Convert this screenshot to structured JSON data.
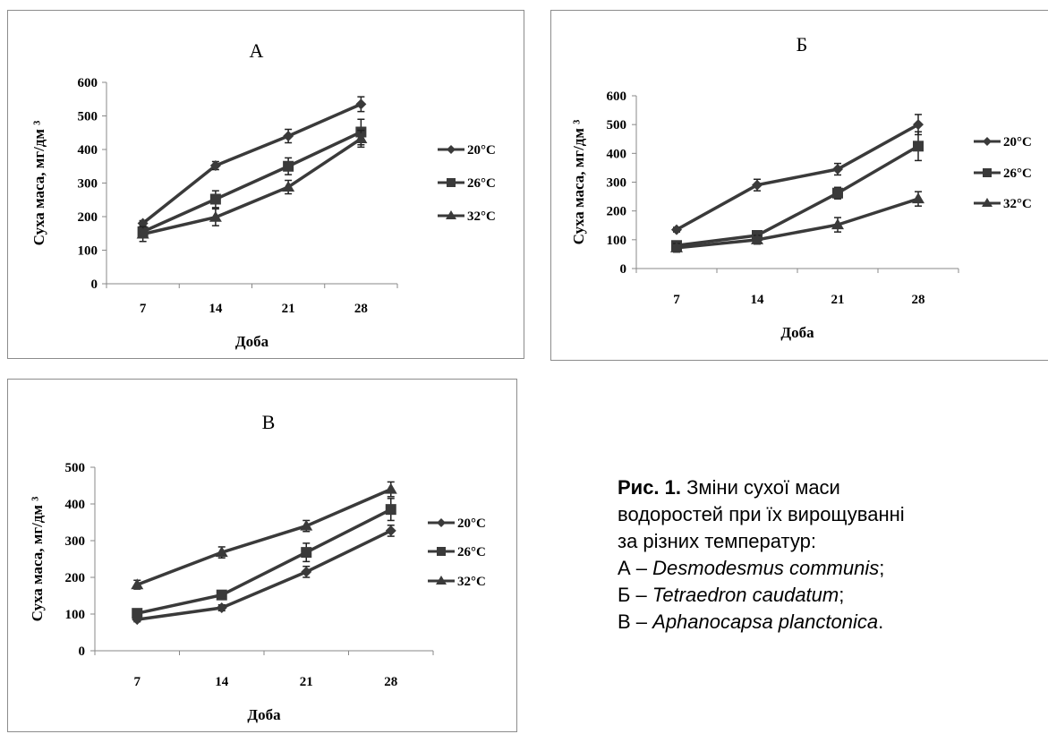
{
  "chart_data": [
    {
      "type": "line",
      "title": "А",
      "xlabel": "Доба",
      "ylabel": "Суха маса, мг/дм ³",
      "categories": [
        "7",
        "14",
        "21",
        "28"
      ],
      "ylim": [
        0,
        600
      ],
      "yticks": [
        0,
        100,
        200,
        300,
        400,
        500,
        600
      ],
      "legend_position": "right",
      "series": [
        {
          "name": "20°C",
          "marker": "diamond",
          "values": [
            180,
            352,
            440,
            535
          ],
          "err": [
            8,
            12,
            20,
            22
          ]
        },
        {
          "name": "26°C",
          "marker": "square",
          "values": [
            155,
            252,
            350,
            452
          ],
          "err": [
            10,
            25,
            25,
            38
          ]
        },
        {
          "name": "32°C",
          "marker": "triangle",
          "values": [
            148,
            198,
            288,
            432
          ],
          "err": [
            22,
            25,
            20,
            25
          ]
        }
      ]
    },
    {
      "type": "line",
      "title": "Б",
      "xlabel": "Доба",
      "ylabel": "Суха маса, мг/дм ³",
      "categories": [
        "7",
        "14",
        "21",
        "28"
      ],
      "ylim": [
        0,
        600
      ],
      "yticks": [
        0,
        100,
        200,
        300,
        400,
        500,
        600
      ],
      "legend_position": "right",
      "series": [
        {
          "name": "20°C",
          "marker": "diamond",
          "values": [
            135,
            290,
            345,
            500
          ],
          "err": [
            8,
            20,
            20,
            35
          ]
        },
        {
          "name": "26°C",
          "marker": "square",
          "values": [
            80,
            115,
            262,
            425
          ],
          "err": [
            12,
            12,
            20,
            50
          ]
        },
        {
          "name": "32°C",
          "marker": "triangle",
          "values": [
            72,
            100,
            152,
            242
          ],
          "err": [
            15,
            15,
            25,
            25
          ]
        }
      ]
    },
    {
      "type": "line",
      "title": "В",
      "xlabel": "Доба",
      "ylabel": "Суха маса, мг/дм ³",
      "categories": [
        "7",
        "14",
        "21",
        "28"
      ],
      "ylim": [
        0,
        500
      ],
      "yticks": [
        0,
        100,
        200,
        300,
        400,
        500
      ],
      "legend_position": "right",
      "series": [
        {
          "name": "20°C",
          "marker": "diamond",
          "values": [
            85,
            117,
            215,
            327
          ],
          "err": [
            6,
            8,
            15,
            15
          ]
        },
        {
          "name": "26°C",
          "marker": "square",
          "values": [
            102,
            152,
            268,
            385
          ],
          "err": [
            8,
            10,
            25,
            30
          ]
        },
        {
          "name": "32°C",
          "marker": "triangle",
          "values": [
            180,
            268,
            340,
            440
          ],
          "err": [
            12,
            15,
            15,
            20
          ]
        }
      ]
    }
  ],
  "caption": {
    "label": "Рис. 1.",
    "line1_rest": " Зміни сухої маси",
    "line2": "водоростей при їх вирощуванні",
    "line3": "за різних температур:",
    "items": [
      {
        "prefix": "А – ",
        "species": "Desmodesmus communis",
        "suffix": ";"
      },
      {
        "prefix": "Б – ",
        "species": "Tetraedron caudatum",
        "suffix": ";"
      },
      {
        "prefix": "В – ",
        "species": "Aphanocapsa planctonica",
        "suffix": "."
      }
    ]
  }
}
